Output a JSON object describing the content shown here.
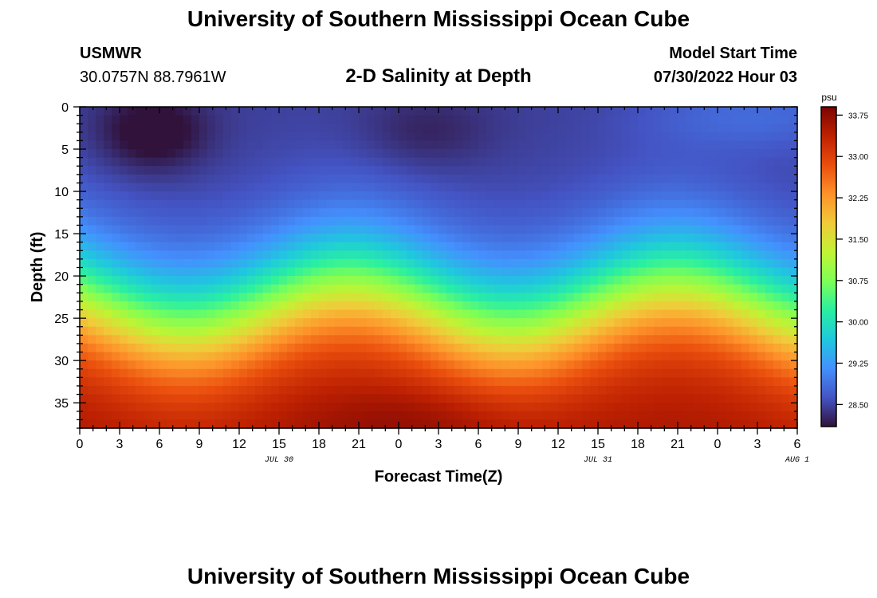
{
  "header": {
    "title": "University of Southern Mississippi Ocean Cube",
    "station": "USMWR",
    "coords": "30.0757N  88.7961W",
    "subtitle": "2-D Salinity at Depth",
    "model_start_label": "Model Start Time",
    "model_start_value": "07/30/2022 Hour 03"
  },
  "footer": {
    "title": "University of Southern Mississippi Ocean Cube"
  },
  "chart_data": {
    "type": "heatmap",
    "variable": "Salinity",
    "units": "psu",
    "xlabel": "Forecast Time(Z)",
    "ylabel": "Depth (ft)",
    "x_tick_labels": [
      "0",
      "3",
      "6",
      "9",
      "12",
      "15",
      "18",
      "21",
      "0",
      "3",
      "6",
      "9",
      "12",
      "15",
      "18",
      "21",
      "0",
      "3",
      "6"
    ],
    "date_labels": [
      {
        "label": "JUL 30",
        "at_hour": 15
      },
      {
        "label": "JUL 31",
        "at_hour": 39
      },
      {
        "label": "AUG 1",
        "at_hour": 54
      }
    ],
    "x_range_hours": [
      0,
      54
    ],
    "y_ticks": [
      0,
      5,
      10,
      15,
      20,
      25,
      30,
      35
    ],
    "ylim": [
      0,
      38
    ],
    "y_inverted": true,
    "colorbar": {
      "range": [
        28.1,
        33.9
      ],
      "ticks": [
        "33.75",
        "33.00",
        "32.25",
        "31.50",
        "30.75",
        "30.00",
        "29.25",
        "28.50"
      ],
      "colors": [
        "#30123b",
        "#4454c4",
        "#4490fe",
        "#1fc8de",
        "#29efa2",
        "#7dff56",
        "#c1f334",
        "#f1ca3a",
        "#fe922a",
        "#ea4e0d",
        "#be2102",
        "#7a0403"
      ]
    },
    "approx_profile": {
      "description": "salinity increases with depth; low (~28.2-28.5) near surface, ~30 at 13-15 ft, ~31 at 20 ft, ~32.5-33.8 below 28 ft; fresher upper layer and deeper halocline oscillate with the tide (halocline deepest near hours 6, 32; shallowest near hours 22-24 and 47-48)",
      "depth_ft": [
        0,
        5,
        10,
        15,
        20,
        25,
        30,
        35,
        38
      ],
      "salinity_psu_mean": [
        28.5,
        28.7,
        29.2,
        29.9,
        30.8,
        31.7,
        32.7,
        33.3,
        33.5
      ]
    }
  }
}
